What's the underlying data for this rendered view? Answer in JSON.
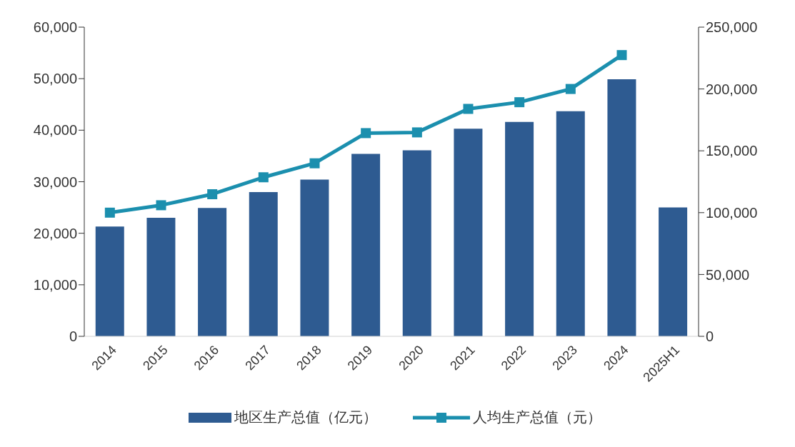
{
  "chart_data": {
    "type": "bar",
    "categories": [
      "2014",
      "2015",
      "2016",
      "2017",
      "2018",
      "2019",
      "2020",
      "2021",
      "2022",
      "2023",
      "2024",
      "2025H1"
    ],
    "series": [
      {
        "name": "地区生产总值（亿元）",
        "color": "#2e5b91",
        "values": [
          21300,
          23000,
          24900,
          28000,
          30400,
          35400,
          36100,
          40300,
          41600,
          43700,
          49900,
          25000
        ]
      },
      {
        "name": "人均生产总值（元）",
        "type": "line",
        "axis": "y2",
        "color": "#1b8fae",
        "marker": "square",
        "values": [
          100000,
          106000,
          114900,
          128600,
          139900,
          164300,
          164900,
          183900,
          189300,
          200000,
          227400,
          null
        ]
      }
    ],
    "ylim": [
      0,
      60000
    ],
    "yticks": [
      0,
      {
        "value": 10000,
        "label": "10,000"
      },
      {
        "value": 20000,
        "label": "20,000"
      },
      {
        "value": 30000,
        "label": "30,000"
      },
      {
        "value": 40000,
        "label": "40,000"
      },
      {
        "value": 50000,
        "label": "50,000"
      },
      {
        "value": 60000,
        "label": "60,000"
      }
    ],
    "y2lim": [
      0,
      250000
    ],
    "y2ticks": [
      0,
      {
        "value": 50000,
        "label": "50,000"
      },
      {
        "value": 100000,
        "label": "100,000"
      },
      {
        "value": 150000,
        "label": "150,000"
      },
      {
        "value": 200000,
        "label": "200,000"
      },
      {
        "value": 250000,
        "label": "250,000"
      }
    ],
    "grid": false,
    "legend": "bottom"
  }
}
